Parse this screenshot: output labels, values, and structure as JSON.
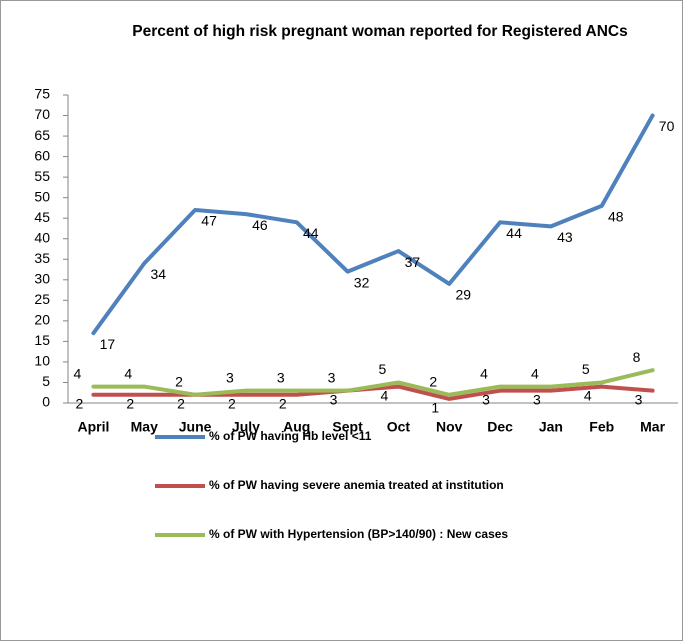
{
  "chart_data": {
    "type": "line",
    "title": "Percent of high risk pregnant woman reported for Registered ANCs",
    "categories": [
      "April",
      "May",
      "June",
      "July",
      "Aug",
      "Sept",
      "Oct",
      "Nov",
      "Dec",
      "Jan",
      "Feb",
      "Mar"
    ],
    "series": [
      {
        "name": "% of PW having Hb level <11",
        "color": "#4f81bd",
        "values": [
          17,
          34,
          47,
          46,
          44,
          32,
          37,
          29,
          44,
          43,
          48,
          70
        ]
      },
      {
        "name": "% of PW having severe anemia treated at institution",
        "color": "#c0504d",
        "values": [
          2,
          2,
          2,
          2,
          2,
          3,
          4,
          1,
          3,
          3,
          4,
          3
        ]
      },
      {
        "name": "% of PW with Hypertension (BP>140/90) : New cases",
        "color": "#9bbb59",
        "values": [
          4,
          4,
          2,
          3,
          3,
          3,
          5,
          2,
          4,
          4,
          5,
          8
        ]
      }
    ],
    "ylim": [
      0,
      75
    ],
    "yticks": [
      0,
      5,
      10,
      15,
      20,
      25,
      30,
      35,
      40,
      45,
      50,
      55,
      60,
      65,
      70,
      75
    ],
    "legend": "bottom",
    "data_labels": true
  }
}
